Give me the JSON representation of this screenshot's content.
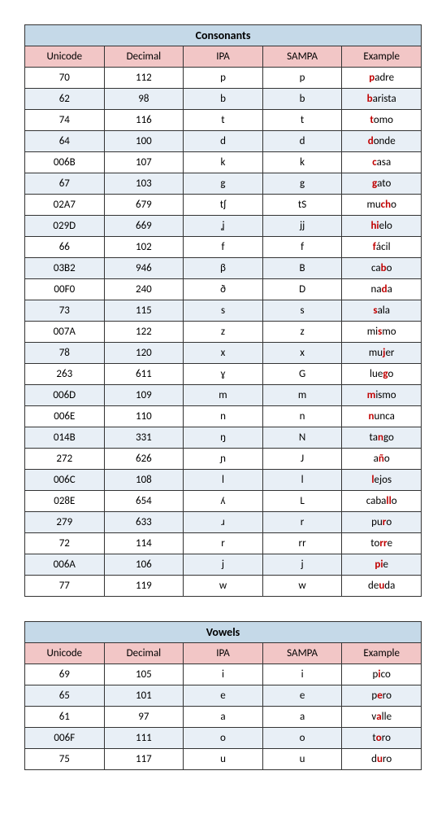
{
  "tables": [
    {
      "title": "Consonants",
      "columns": [
        "Unicode",
        "Decimal",
        "IPA",
        "SAMPA",
        "Example"
      ],
      "rows": [
        {
          "unicode": "70",
          "decimal": "112",
          "ipa": "p",
          "sampa": "p",
          "example": {
            "pre": "",
            "hl": "p",
            "post": "adre"
          }
        },
        {
          "unicode": "62",
          "decimal": "98",
          "ipa": "b",
          "sampa": "b",
          "example": {
            "pre": "",
            "hl": "b",
            "post": "arista"
          }
        },
        {
          "unicode": "74",
          "decimal": "116",
          "ipa": "t",
          "sampa": "t",
          "example": {
            "pre": "",
            "hl": "t",
            "post": "omo"
          }
        },
        {
          "unicode": "64",
          "decimal": "100",
          "ipa": "d",
          "sampa": "d",
          "example": {
            "pre": "",
            "hl": "d",
            "post": "onde"
          }
        },
        {
          "unicode": "006B",
          "decimal": "107",
          "ipa": "k",
          "sampa": "k",
          "example": {
            "pre": "",
            "hl": "c",
            "post": "asa"
          }
        },
        {
          "unicode": "67",
          "decimal": "103",
          "ipa": "g",
          "sampa": "g",
          "example": {
            "pre": "",
            "hl": "g",
            "post": "ato"
          }
        },
        {
          "unicode": "02A7",
          "decimal": "679",
          "ipa": "tʃ",
          "sampa": "tS",
          "example": {
            "pre": "mu",
            "hl": "ch",
            "post": "o"
          }
        },
        {
          "unicode": "029D",
          "decimal": "669",
          "ipa": "ʝ",
          "sampa": "jj",
          "example": {
            "pre": "",
            "hl": "hi",
            "post": "elo"
          }
        },
        {
          "unicode": "66",
          "decimal": "102",
          "ipa": "f",
          "sampa": "f",
          "example": {
            "pre": "",
            "hl": "f",
            "post": "ácil"
          }
        },
        {
          "unicode": "03B2",
          "decimal": "946",
          "ipa": "β",
          "sampa": "B",
          "example": {
            "pre": "ca",
            "hl": "b",
            "post": "o"
          }
        },
        {
          "unicode": "00F0",
          "decimal": "240",
          "ipa": "ð",
          "sampa": "D",
          "example": {
            "pre": "na",
            "hl": "d",
            "post": "a"
          }
        },
        {
          "unicode": "73",
          "decimal": "115",
          "ipa": "s",
          "sampa": "s",
          "example": {
            "pre": "",
            "hl": "s",
            "post": "ala"
          }
        },
        {
          "unicode": "007A",
          "decimal": "122",
          "ipa": "z",
          "sampa": "z",
          "example": {
            "pre": "mi",
            "hl": "s",
            "post": "mo"
          }
        },
        {
          "unicode": "78",
          "decimal": "120",
          "ipa": "x",
          "sampa": "x",
          "example": {
            "pre": "mu",
            "hl": "j",
            "post": "er"
          }
        },
        {
          "unicode": "263",
          "decimal": "611",
          "ipa": "ɣ",
          "sampa": "G",
          "example": {
            "pre": "lue",
            "hl": "g",
            "post": "o"
          }
        },
        {
          "unicode": "006D",
          "decimal": "109",
          "ipa": "m",
          "sampa": "m",
          "example": {
            "pre": "",
            "hl": "m",
            "post": "ismo"
          }
        },
        {
          "unicode": "006E",
          "decimal": "110",
          "ipa": "n",
          "sampa": "n",
          "example": {
            "pre": "",
            "hl": "n",
            "post": "unca"
          }
        },
        {
          "unicode": "014B",
          "decimal": "331",
          "ipa": "ŋ",
          "sampa": "N",
          "example": {
            "pre": "ta",
            "hl": "n",
            "post": "go"
          }
        },
        {
          "unicode": "272",
          "decimal": "626",
          "ipa": "ɲ",
          "sampa": "J",
          "example": {
            "pre": "a",
            "hl": "ñ",
            "post": "o"
          }
        },
        {
          "unicode": "006C",
          "decimal": "108",
          "ipa": "l",
          "sampa": "l",
          "example": {
            "pre": "",
            "hl": "l",
            "post": "ejos"
          }
        },
        {
          "unicode": "028E",
          "decimal": "654",
          "ipa": "ʎ",
          "sampa": "L",
          "example": {
            "pre": "caba",
            "hl": "ll",
            "post": "o"
          }
        },
        {
          "unicode": "279",
          "decimal": "633",
          "ipa": "ɹ",
          "sampa": "r",
          "example": {
            "pre": "pu",
            "hl": "r",
            "post": "o"
          }
        },
        {
          "unicode": "72",
          "decimal": "114",
          "ipa": "r",
          "sampa": "rr",
          "example": {
            "pre": "to",
            "hl": "rr",
            "post": "e"
          }
        },
        {
          "unicode": "006A",
          "decimal": "106",
          "ipa": "j",
          "sampa": "j",
          "example": {
            "pre": "",
            "hl": "pi",
            "post": "e"
          }
        },
        {
          "unicode": "77",
          "decimal": "119",
          "ipa": "w",
          "sampa": "w",
          "example": {
            "pre": "de",
            "hl": "u",
            "post": "da"
          }
        }
      ]
    },
    {
      "title": "Vowels",
      "columns": [
        "Unicode",
        "Decimal",
        "IPA",
        "SAMPA",
        "Example"
      ],
      "rows": [
        {
          "unicode": "69",
          "decimal": "105",
          "ipa": "i",
          "sampa": "i",
          "example": {
            "pre": "p",
            "hl": "i",
            "post": "co"
          }
        },
        {
          "unicode": "65",
          "decimal": "101",
          "ipa": "e",
          "sampa": "e",
          "example": {
            "pre": "p",
            "hl": "e",
            "post": "ro"
          }
        },
        {
          "unicode": "61",
          "decimal": "97",
          "ipa": "a",
          "sampa": "a",
          "example": {
            "pre": "v",
            "hl": "a",
            "post": "lle"
          }
        },
        {
          "unicode": "006F",
          "decimal": "111",
          "ipa": "o",
          "sampa": "o",
          "example": {
            "pre": "t",
            "hl": "o",
            "post": "ro"
          }
        },
        {
          "unicode": "75",
          "decimal": "117",
          "ipa": "u",
          "sampa": "u",
          "example": {
            "pre": "d",
            "hl": "u",
            "post": "ro"
          }
        }
      ]
    }
  ]
}
